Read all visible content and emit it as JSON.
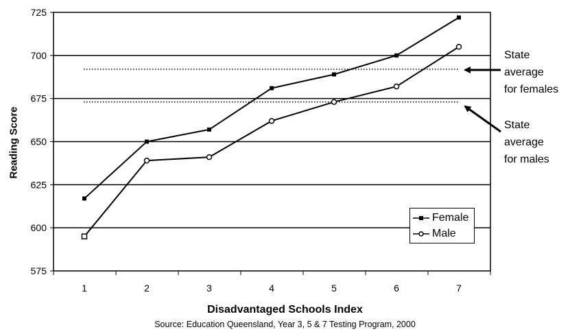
{
  "chart_data": {
    "type": "line",
    "xlabel": "Disadvantaged Schools Index",
    "ylabel": "Reading Score",
    "source": "Source: Education Queensland, Year 3, 5 & 7 Testing Program, 2000",
    "x": [
      1,
      2,
      3,
      4,
      5,
      6,
      7
    ],
    "x_ticks": [
      "1",
      "2",
      "3",
      "4",
      "5",
      "6",
      "7"
    ],
    "ylim": [
      575,
      725
    ],
    "y_ticks": [
      "575",
      "600",
      "625",
      "650",
      "675",
      "700",
      "725"
    ],
    "grid": "horizontal",
    "legend_position": "bottom-right",
    "series": [
      {
        "name": "Female",
        "values": [
          617,
          650,
          657,
          681,
          689,
          700,
          722
        ],
        "marker": "filled-square",
        "color": "#000000"
      },
      {
        "name": "Male",
        "values": [
          595,
          639,
          641,
          662,
          673,
          682,
          705
        ],
        "marker": "open-circle",
        "color": "#000000"
      }
    ],
    "reference_lines": [
      {
        "name": "State average for females",
        "value": 692,
        "style": "dotted"
      },
      {
        "name": "State average for males",
        "value": 673,
        "style": "dotted"
      }
    ],
    "annotations": {
      "female": [
        "State",
        "average",
        "for females"
      ],
      "male": [
        "State",
        "average",
        "for males"
      ]
    }
  }
}
